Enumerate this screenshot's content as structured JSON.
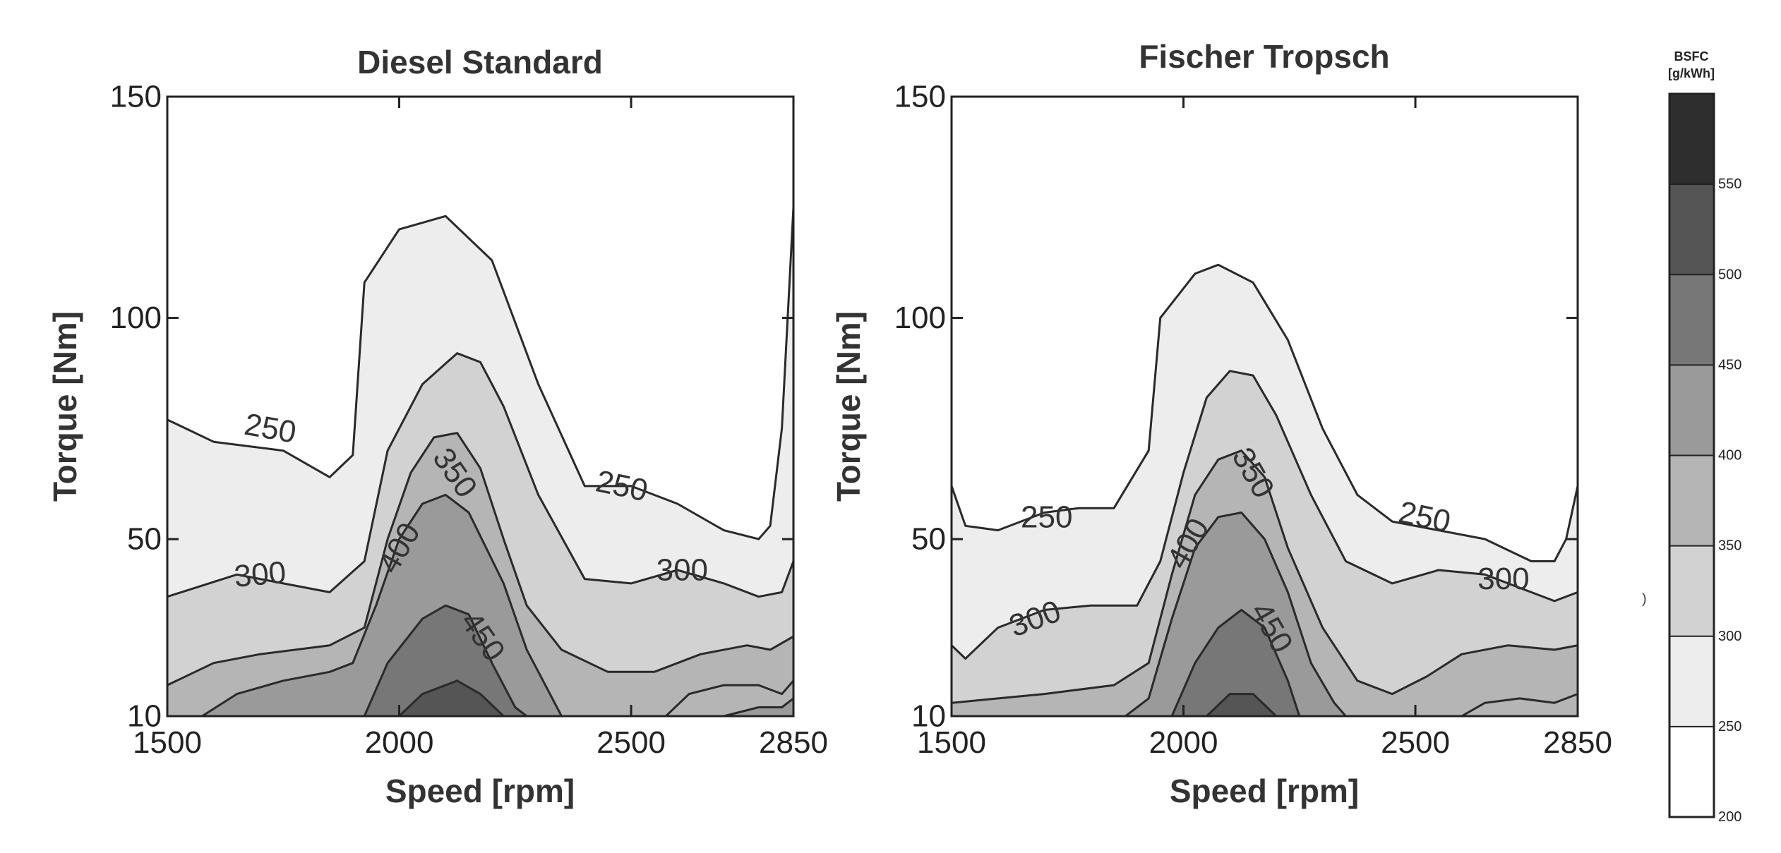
{
  "chart_data": [
    {
      "type": "contour",
      "title": "Diesel Standard",
      "xlabel": "Speed [rpm]",
      "ylabel": "Torque [Nm]",
      "xlim": [
        1500,
        2850
      ],
      "ylim": [
        10,
        150
      ],
      "x_ticks": [
        "1500",
        "2000",
        "2500",
        "2850"
      ],
      "y_ticks": [
        "10",
        "50",
        "100",
        "150"
      ],
      "contour_levels": [
        250,
        300,
        350,
        400,
        450
      ],
      "contour_labels": [
        "250",
        "250",
        "300",
        "300",
        "350",
        "400",
        "450"
      ],
      "contours": [
        {
          "level": 250,
          "points": [
            [
              1500,
              77
            ],
            [
              1600,
              72
            ],
            [
              1750,
              70
            ],
            [
              1850,
              64
            ],
            [
              1900,
              69
            ],
            [
              1925,
              108
            ],
            [
              2000,
              120
            ],
            [
              2100,
              123
            ],
            [
              2200,
              113
            ],
            [
              2300,
              85
            ],
            [
              2400,
              62
            ],
            [
              2500,
              62
            ],
            [
              2600,
              58
            ],
            [
              2700,
              52
            ],
            [
              2775,
              50
            ],
            [
              2800,
              53
            ],
            [
              2825,
              75
            ],
            [
              2850,
              125
            ]
          ]
        },
        {
          "level": 300,
          "points": [
            [
              1500,
              37
            ],
            [
              1650,
              42
            ],
            [
              1750,
              40
            ],
            [
              1850,
              38
            ],
            [
              1925,
              45
            ],
            [
              1975,
              70
            ],
            [
              2050,
              85
            ],
            [
              2125,
              92
            ],
            [
              2175,
              90
            ],
            [
              2225,
              80
            ],
            [
              2300,
              60
            ],
            [
              2400,
              41
            ],
            [
              2500,
              40
            ],
            [
              2600,
              43
            ],
            [
              2700,
              40
            ],
            [
              2775,
              37
            ],
            [
              2825,
              38
            ],
            [
              2850,
              45
            ]
          ]
        },
        {
          "level": 350,
          "points": [
            [
              1500,
              17
            ],
            [
              1600,
              22
            ],
            [
              1700,
              24
            ],
            [
              1850,
              26
            ],
            [
              1925,
              30
            ],
            [
              1975,
              50
            ],
            [
              2025,
              65
            ],
            [
              2075,
              73
            ],
            [
              2125,
              74
            ],
            [
              2175,
              66
            ],
            [
              2225,
              50
            ],
            [
              2275,
              35
            ],
            [
              2350,
              25
            ],
            [
              2450,
              20
            ],
            [
              2550,
              20
            ],
            [
              2650,
              24
            ],
            [
              2750,
              26
            ],
            [
              2800,
              25
            ],
            [
              2850,
              28
            ]
          ]
        },
        {
          "level": 400,
          "points": [
            [
              1575,
              10
            ],
            [
              1650,
              15
            ],
            [
              1750,
              18
            ],
            [
              1850,
              20
            ],
            [
              1900,
              22
            ],
            [
              1950,
              35
            ],
            [
              2000,
              50
            ],
            [
              2050,
              58
            ],
            [
              2100,
              60
            ],
            [
              2150,
              56
            ],
            [
              2225,
              40
            ],
            [
              2275,
              25
            ],
            [
              2325,
              15
            ],
            [
              2350,
              10
            ]
          ]
        },
        {
          "level": 450,
          "points": [
            [
              1925,
              10
            ],
            [
              1975,
              22
            ],
            [
              2050,
              32
            ],
            [
              2100,
              35
            ],
            [
              2150,
              33
            ],
            [
              2200,
              22
            ],
            [
              2250,
              12
            ],
            [
              2275,
              10
            ]
          ]
        },
        {
          "level": 500,
          "points": [
            [
              2000,
              10
            ],
            [
              2050,
              15
            ],
            [
              2125,
              18
            ],
            [
              2175,
              15
            ],
            [
              2225,
              10
            ]
          ]
        },
        {
          "level": 350,
          "points": [
            [
              2575,
              10
            ],
            [
              2625,
              15
            ],
            [
              2700,
              17
            ],
            [
              2775,
              17
            ],
            [
              2825,
              15
            ],
            [
              2850,
              18
            ]
          ]
        },
        {
          "level": 400,
          "points": [
            [
              2700,
              10
            ],
            [
              2775,
              12
            ],
            [
              2825,
              12
            ],
            [
              2850,
              14
            ]
          ]
        }
      ],
      "label_positions": [
        {
          "text": "250",
          "x": 1722,
          "y": 75,
          "angle": 10
        },
        {
          "text": "250",
          "x": 2480,
          "y": 62,
          "angle": 12
        },
        {
          "text": "300",
          "x": 1700,
          "y": 42,
          "angle": -5
        },
        {
          "text": "300",
          "x": 2610,
          "y": 43,
          "angle": 0
        },
        {
          "text": "350",
          "x": 2120,
          "y": 65,
          "angle": 55
        },
        {
          "text": "400",
          "x": 2000,
          "y": 48,
          "angle": -60
        },
        {
          "text": "450",
          "x": 2180,
          "y": 28,
          "angle": 55
        }
      ]
    },
    {
      "type": "contour",
      "title": "Fischer Tropsch",
      "xlabel": "Speed [rpm]",
      "ylabel": "Torque [Nm]",
      "xlim": [
        1500,
        2850
      ],
      "ylim": [
        10,
        150
      ],
      "x_ticks": [
        "1500",
        "2000",
        "2500",
        "2850"
      ],
      "y_ticks": [
        "10",
        "50",
        "100",
        "150"
      ],
      "contour_levels": [
        250,
        300,
        350,
        400,
        450
      ],
      "contour_labels": [
        "250",
        "250",
        "300",
        "300",
        "350",
        "400",
        "450"
      ],
      "contours": [
        {
          "level": 250,
          "points": [
            [
              1500,
              62
            ],
            [
              1530,
              53
            ],
            [
              1600,
              52
            ],
            [
              1700,
              56
            ],
            [
              1775,
              57
            ],
            [
              1850,
              57
            ],
            [
              1925,
              70
            ],
            [
              1950,
              100
            ],
            [
              2025,
              110
            ],
            [
              2075,
              112
            ],
            [
              2150,
              108
            ],
            [
              2225,
              95
            ],
            [
              2300,
              75
            ],
            [
              2375,
              60
            ],
            [
              2450,
              54
            ],
            [
              2550,
              52
            ],
            [
              2650,
              50
            ],
            [
              2750,
              45
            ],
            [
              2800,
              45
            ],
            [
              2825,
              50
            ],
            [
              2850,
              62
            ]
          ]
        },
        {
          "level": 300,
          "points": [
            [
              1500,
              26
            ],
            [
              1530,
              23
            ],
            [
              1600,
              30
            ],
            [
              1700,
              34
            ],
            [
              1800,
              35
            ],
            [
              1900,
              35
            ],
            [
              1950,
              45
            ],
            [
              2000,
              65
            ],
            [
              2050,
              82
            ],
            [
              2100,
              88
            ],
            [
              2150,
              87
            ],
            [
              2200,
              78
            ],
            [
              2275,
              60
            ],
            [
              2350,
              45
            ],
            [
              2450,
              40
            ],
            [
              2550,
              43
            ],
            [
              2650,
              42
            ],
            [
              2750,
              38
            ],
            [
              2800,
              36
            ],
            [
              2850,
              38
            ]
          ]
        },
        {
          "level": 350,
          "points": [
            [
              1500,
              13
            ],
            [
              1600,
              14
            ],
            [
              1700,
              15
            ],
            [
              1850,
              17
            ],
            [
              1925,
              22
            ],
            [
              1975,
              42
            ],
            [
              2025,
              60
            ],
            [
              2075,
              68
            ],
            [
              2125,
              70
            ],
            [
              2175,
              64
            ],
            [
              2225,
              48
            ],
            [
              2300,
              30
            ],
            [
              2375,
              18
            ],
            [
              2450,
              15
            ],
            [
              2525,
              19
            ],
            [
              2600,
              24
            ],
            [
              2700,
              26
            ],
            [
              2800,
              25
            ],
            [
              2850,
              26
            ]
          ]
        },
        {
          "level": 400,
          "points": [
            [
              1875,
              10
            ],
            [
              1925,
              14
            ],
            [
              1975,
              32
            ],
            [
              2025,
              48
            ],
            [
              2075,
              55
            ],
            [
              2125,
              56
            ],
            [
              2175,
              50
            ],
            [
              2225,
              38
            ],
            [
              2275,
              22
            ],
            [
              2325,
              13
            ],
            [
              2350,
              10
            ]
          ]
        },
        {
          "level": 450,
          "points": [
            [
              1975,
              10
            ],
            [
              2025,
              22
            ],
            [
              2075,
              30
            ],
            [
              2125,
              34
            ],
            [
              2175,
              30
            ],
            [
              2225,
              18
            ],
            [
              2250,
              10
            ]
          ]
        },
        {
          "level": 500,
          "points": [
            [
              2050,
              10
            ],
            [
              2100,
              15
            ],
            [
              2150,
              15
            ],
            [
              2200,
              10
            ]
          ]
        },
        {
          "level": 350,
          "points": [
            [
              2600,
              10
            ],
            [
              2650,
              13
            ],
            [
              2725,
              14
            ],
            [
              2800,
              13
            ],
            [
              2850,
              15
            ]
          ]
        }
      ],
      "label_positions": [
        {
          "text": "250",
          "x": 1705,
          "y": 55,
          "angle": 0
        },
        {
          "text": "250",
          "x": 2520,
          "y": 55,
          "angle": 12
        },
        {
          "text": "300",
          "x": 1680,
          "y": 32,
          "angle": -20
        },
        {
          "text": "300",
          "x": 2690,
          "y": 41,
          "angle": 0
        },
        {
          "text": "350",
          "x": 2150,
          "y": 65,
          "angle": 60
        },
        {
          "text": "400",
          "x": 2010,
          "y": 49,
          "angle": -60
        },
        {
          "text": "450",
          "x": 2190,
          "y": 30,
          "angle": 60
        }
      ]
    }
  ],
  "colorbar": {
    "title_line1": "BSFC",
    "title_line2": "[g/kWh]",
    "levels": [
      200,
      250,
      300,
      350,
      400,
      450,
      500,
      550
    ],
    "tick_labels": [
      "200",
      "250",
      "300",
      "350",
      "400",
      "450",
      "500",
      "550"
    ],
    "colors": [
      "#ffffff",
      "#ededed",
      "#d2d2d2",
      "#b5b5b5",
      "#9a9a9a",
      "#777777",
      "#555555",
      "#2e2e2e"
    ]
  },
  "stray_mark": ")"
}
